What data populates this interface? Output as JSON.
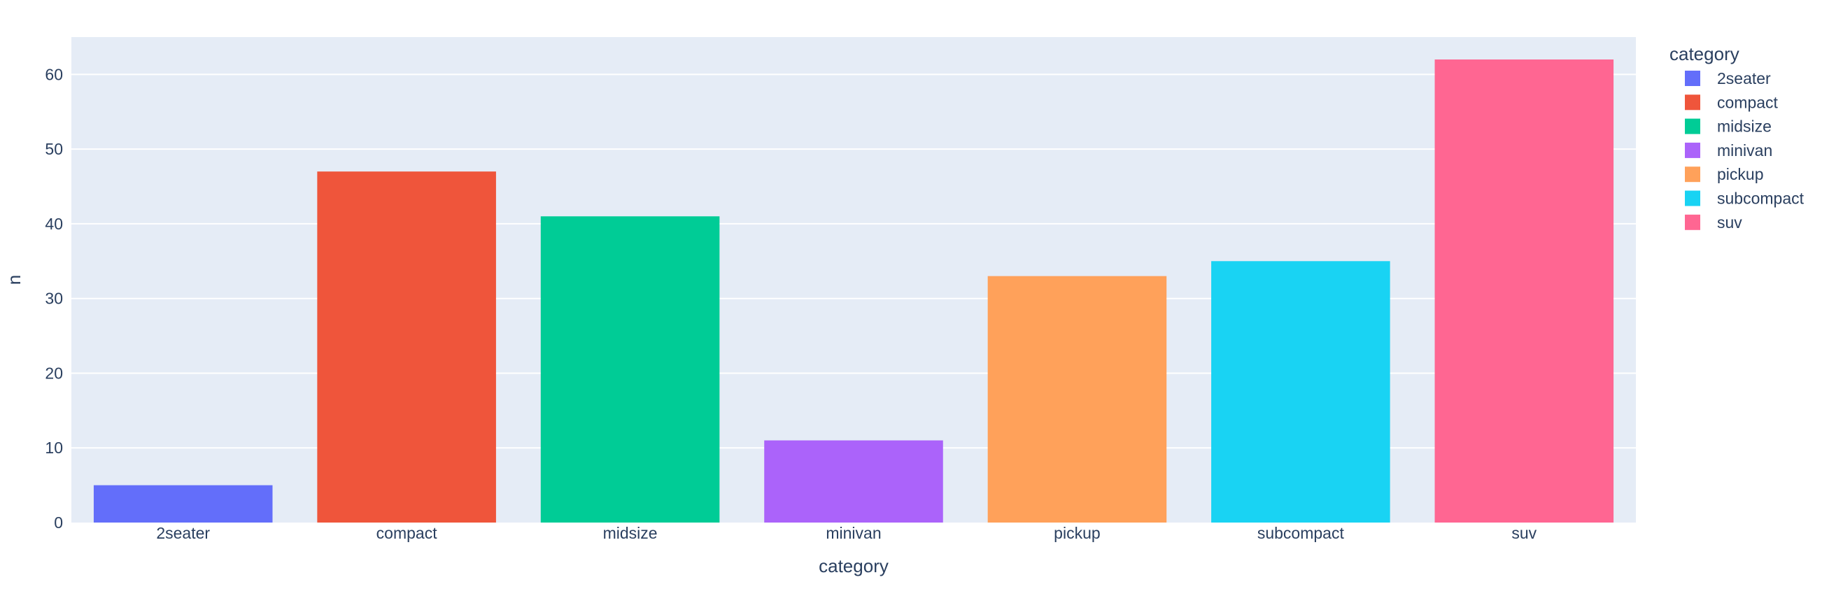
{
  "chart_data": {
    "type": "bar",
    "categories": [
      "2seater",
      "compact",
      "midsize",
      "minivan",
      "pickup",
      "subcompact",
      "suv"
    ],
    "values": [
      5,
      47,
      41,
      11,
      33,
      35,
      62
    ],
    "colors": [
      "#636efa",
      "#EF553B",
      "#00cc96",
      "#ab63fa",
      "#FFA15A",
      "#19d3f3",
      "#FF6692"
    ],
    "xlabel": "category",
    "ylabel": "n",
    "ylim": [
      0,
      65
    ],
    "yticks": [
      0,
      10,
      20,
      30,
      40,
      50,
      60
    ],
    "grid": true,
    "legend": {
      "title": "category",
      "placement": "top-right",
      "entries": [
        "2seater",
        "compact",
        "midsize",
        "minivan",
        "pickup",
        "subcompact",
        "suv"
      ]
    },
    "plot_background": "#e5ecf6"
  }
}
